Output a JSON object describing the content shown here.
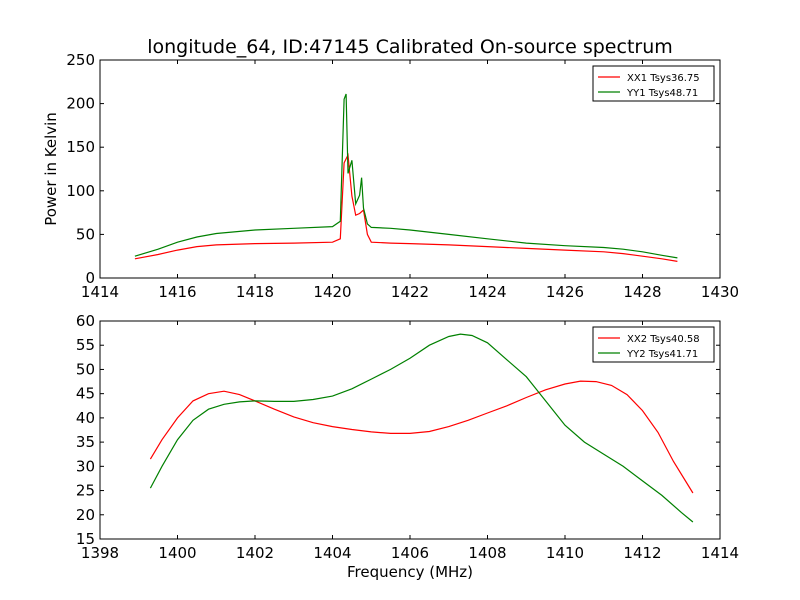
{
  "title": "longitude_64, ID:47145 Calibrated On-source spectrum",
  "colors": {
    "xx": "#ff0000",
    "yy": "#008000"
  },
  "chart_data": [
    {
      "type": "line",
      "xlabel": "",
      "ylabel": "Power in Kelvin",
      "xlim": [
        1414,
        1430
      ],
      "ylim": [
        0,
        250
      ],
      "xticks": [
        1414,
        1416,
        1418,
        1420,
        1422,
        1424,
        1426,
        1428,
        1430
      ],
      "yticks": [
        0,
        50,
        100,
        150,
        200,
        250
      ],
      "legend_position": "top-right",
      "series": [
        {
          "name": "XX1 Tsys36.75",
          "color": "#ff0000",
          "x": [
            1414.9,
            1415.5,
            1416.0,
            1416.5,
            1417.0,
            1418.0,
            1419.0,
            1420.0,
            1420.2,
            1420.3,
            1420.4,
            1420.5,
            1420.6,
            1420.7,
            1420.8,
            1420.9,
            1421.0,
            1421.5,
            1422.0,
            1423.0,
            1424.0,
            1425.0,
            1426.0,
            1427.0,
            1427.5,
            1428.0,
            1428.5,
            1428.9
          ],
          "y": [
            22,
            27,
            32,
            36,
            38,
            39.5,
            40,
            41,
            45,
            132,
            141,
            94,
            72,
            74,
            78,
            50,
            41,
            40,
            39.5,
            38,
            36,
            34,
            32,
            30,
            28,
            25,
            22,
            19
          ]
        },
        {
          "name": "YY1 Tsys48.71",
          "color": "#008000",
          "x": [
            1414.9,
            1415.5,
            1416.0,
            1416.5,
            1417.0,
            1418.0,
            1419.0,
            1420.0,
            1420.2,
            1420.3,
            1420.35,
            1420.4,
            1420.5,
            1420.6,
            1420.7,
            1420.75,
            1420.8,
            1420.9,
            1421.0,
            1421.5,
            1422.0,
            1423.0,
            1424.0,
            1425.0,
            1426.0,
            1427.0,
            1427.5,
            1428.0,
            1428.5,
            1428.9
          ],
          "y": [
            25,
            33,
            41,
            47,
            51,
            55,
            57,
            59,
            65,
            205,
            211,
            120,
            135,
            85,
            95,
            115,
            80,
            62,
            58,
            57,
            55,
            50,
            45,
            40,
            37,
            35,
            33,
            30,
            26,
            23
          ]
        }
      ]
    },
    {
      "type": "line",
      "xlabel": "Frequency (MHz)",
      "ylabel": "",
      "xlim": [
        1398,
        1414
      ],
      "ylim": [
        15,
        60
      ],
      "xticks": [
        1398,
        1400,
        1402,
        1404,
        1406,
        1408,
        1410,
        1412,
        1414
      ],
      "yticks": [
        15,
        20,
        25,
        30,
        35,
        40,
        45,
        50,
        55,
        60
      ],
      "legend_position": "top-right",
      "series": [
        {
          "name": "XX2 Tsys40.58",
          "color": "#ff0000",
          "x": [
            1399.3,
            1399.6,
            1400.0,
            1400.4,
            1400.8,
            1401.2,
            1401.6,
            1402.0,
            1402.5,
            1403.0,
            1403.5,
            1404.0,
            1404.5,
            1405.0,
            1405.5,
            1406.0,
            1406.5,
            1407.0,
            1407.5,
            1408.0,
            1408.5,
            1409.0,
            1409.5,
            1410.0,
            1410.4,
            1410.8,
            1411.2,
            1411.6,
            1412.0,
            1412.4,
            1412.8,
            1413.3
          ],
          "y": [
            31.5,
            35.5,
            40,
            43.5,
            45,
            45.5,
            44.8,
            43.5,
            41.8,
            40.2,
            39,
            38.2,
            37.6,
            37.1,
            36.8,
            36.8,
            37.2,
            38.2,
            39.5,
            41,
            42.5,
            44.2,
            45.8,
            47,
            47.6,
            47.5,
            46.7,
            44.8,
            41.5,
            37,
            31,
            24.5
          ]
        },
        {
          "name": "YY2 Tsys41.71",
          "color": "#008000",
          "x": [
            1399.3,
            1399.6,
            1400.0,
            1400.4,
            1400.8,
            1401.2,
            1401.6,
            1402.0,
            1402.5,
            1403.0,
            1403.5,
            1404.0,
            1404.5,
            1405.0,
            1405.5,
            1406.0,
            1406.5,
            1407.0,
            1407.3,
            1407.6,
            1408.0,
            1408.5,
            1409.0,
            1409.5,
            1410.0,
            1410.5,
            1411.0,
            1411.5,
            1412.0,
            1412.5,
            1413.0,
            1413.3
          ],
          "y": [
            25.5,
            30,
            35.5,
            39.5,
            41.8,
            42.8,
            43.3,
            43.5,
            43.4,
            43.4,
            43.8,
            44.5,
            46,
            48,
            50,
            52.3,
            55,
            56.8,
            57.3,
            57,
            55.5,
            52,
            48.5,
            43.5,
            38.5,
            35,
            32.5,
            30,
            27,
            24,
            20.5,
            18.5
          ]
        }
      ]
    }
  ]
}
